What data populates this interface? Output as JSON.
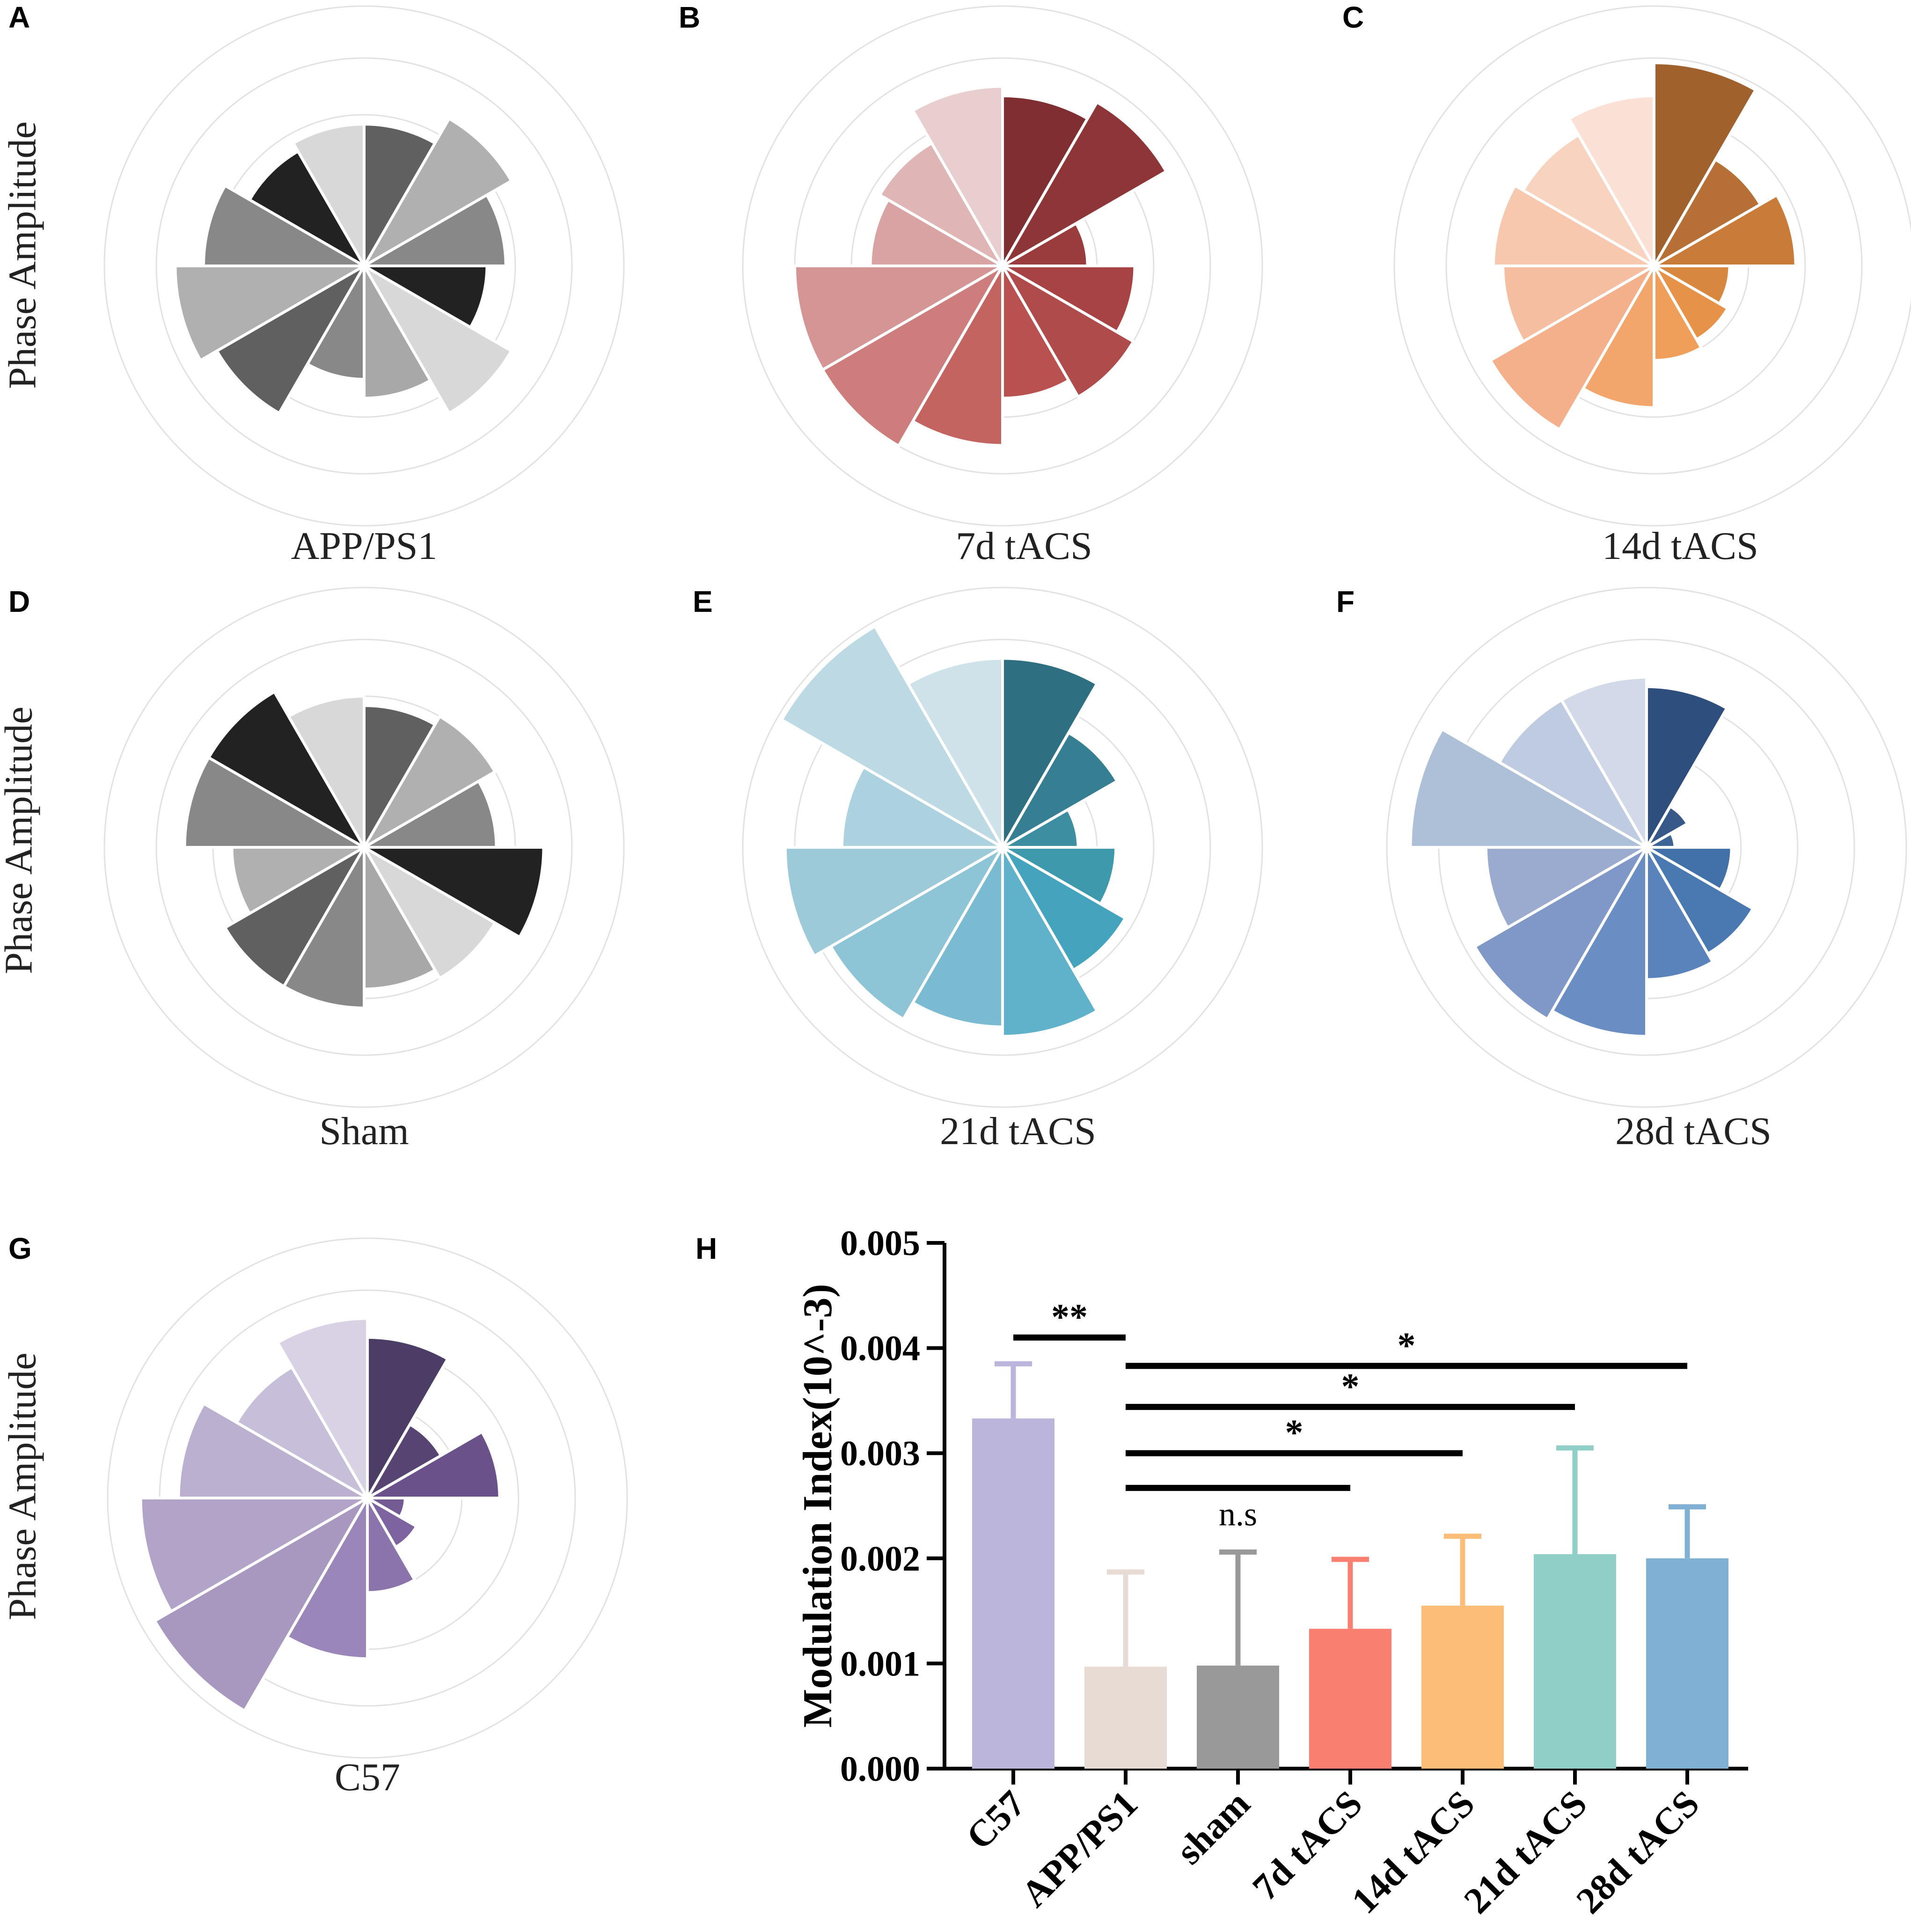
{
  "figure": {
    "panel_letters": [
      "A",
      "B",
      "C",
      "D",
      "E",
      "F",
      "G",
      "H"
    ],
    "rose_ylabel": "Phase Amplitude"
  },
  "chart_data": [
    {
      "type": "polar-bar",
      "panel": "A",
      "title": "APP/PS1",
      "ylabel": "Phase Amplitude",
      "rmax": 0.55,
      "rings": [
        0.2,
        0.32,
        0.44,
        0.55
      ],
      "values": [
        0.3,
        0.36,
        0.3,
        0.26,
        0.36,
        0.28,
        0.24,
        0.36,
        0.4,
        0.34,
        0.28,
        0.3
      ],
      "colors": [
        "#606060",
        "#b0b0b0",
        "#888888",
        "#222222",
        "#d8d8d8",
        "#a8a8a8",
        "#888888",
        "#606060",
        "#b0b0b0",
        "#888888",
        "#222222",
        "#d8d8d8"
      ]
    },
    {
      "type": "polar-bar",
      "panel": "B",
      "title": "7d tACS",
      "ylabel": "",
      "rmax": 0.55,
      "rings": [
        0.2,
        0.32,
        0.44,
        0.55
      ],
      "values": [
        0.36,
        0.4,
        0.18,
        0.28,
        0.32,
        0.28,
        0.38,
        0.44,
        0.44,
        0.28,
        0.3,
        0.38
      ],
      "colors": [
        "#7f2e32",
        "#8e3538",
        "#9a3b3d",
        "#a84345",
        "#b04b4b",
        "#b85150",
        "#c46461",
        "#cd7e7c",
        "#d69595",
        "#d9a3a3",
        "#e0b5b5",
        "#e8cece"
      ]
    },
    {
      "type": "polar-bar",
      "panel": "C",
      "title": "14d tACS",
      "ylabel": "",
      "rmax": 0.55,
      "rings": [
        0.2,
        0.32,
        0.44,
        0.55
      ],
      "values": [
        0.43,
        0.26,
        0.3,
        0.16,
        0.18,
        0.2,
        0.3,
        0.4,
        0.32,
        0.34,
        0.32,
        0.36
      ],
      "colors": [
        "#a0612c",
        "#b66f34",
        "#c97b3a",
        "#d8883e",
        "#e69349",
        "#f09f5b",
        "#f3a66c",
        "#f4b08a",
        "#f6bea1",
        "#f7c8ae",
        "#f8d3c0",
        "#fae0d5"
      ]
    },
    {
      "type": "polar-bar",
      "panel": "D",
      "title": "Sham",
      "ylabel": "Phase Amplitude",
      "rmax": 0.55,
      "rings": [
        0.2,
        0.32,
        0.44,
        0.55
      ],
      "values": [
        0.3,
        0.32,
        0.28,
        0.38,
        0.32,
        0.3,
        0.34,
        0.34,
        0.28,
        0.38,
        0.38,
        0.32
      ],
      "colors": [
        "#606060",
        "#b0b0b0",
        "#888888",
        "#222222",
        "#d8d8d8",
        "#a8a8a8",
        "#888888",
        "#606060",
        "#b0b0b0",
        "#888888",
        "#222222",
        "#d8d8d8"
      ]
    },
    {
      "type": "polar-bar",
      "panel": "E",
      "title": "21d tACS",
      "ylabel": "",
      "rmax": 0.55,
      "rings": [
        0.2,
        0.32,
        0.44,
        0.55
      ],
      "values": [
        0.4,
        0.28,
        0.16,
        0.24,
        0.3,
        0.4,
        0.38,
        0.42,
        0.46,
        0.34,
        0.54,
        0.4
      ],
      "colors": [
        "#2e7082",
        "#367f92",
        "#3c8ea0",
        "#3f99ac",
        "#45a4bd",
        "#5fb2ca",
        "#7abbd1",
        "#8dc4d6",
        "#9dcad9",
        "#acd2df",
        "#bcd9e4",
        "#cfe2ea"
      ]
    },
    {
      "type": "polar-bar",
      "panel": "F",
      "title": "28d tACS",
      "ylabel": "",
      "rmax": 0.55,
      "rings": [
        0.2,
        0.32,
        0.44,
        0.55
      ],
      "values": [
        0.34,
        0.1,
        0.06,
        0.18,
        0.26,
        0.28,
        0.4,
        0.42,
        0.34,
        0.5,
        0.36,
        0.36
      ],
      "colors": [
        "#2e4e7d",
        "#36598a",
        "#3d6497",
        "#4270a8",
        "#4a79b2",
        "#5a83bb",
        "#6a8ec4",
        "#8098c7",
        "#9aabcf",
        "#aebfd8",
        "#bfcbe0",
        "#d2d9e8"
      ]
    },
    {
      "type": "polar-bar",
      "panel": "G",
      "title": "C57",
      "ylabel": "Phase Amplitude",
      "rmax": 0.55,
      "rings": [
        0.2,
        0.32,
        0.44,
        0.55
      ],
      "values": [
        0.34,
        0.18,
        0.28,
        0.08,
        0.12,
        0.2,
        0.34,
        0.52,
        0.48,
        0.4,
        0.32,
        0.38
      ],
      "colors": [
        "#4c3d66",
        "#574473",
        "#6a5189",
        "#745b94",
        "#7d64a1",
        "#8b73ab",
        "#9a86b8",
        "#a898bf",
        "#b2a3c8",
        "#bbb0d0",
        "#c7bed9",
        "#d8d2e4"
      ]
    },
    {
      "type": "bar",
      "panel": "H",
      "title": "",
      "ylabel": "Modulation Index(10^-3)",
      "xlabel": "",
      "categories": [
        "C57",
        "APP/PS1",
        "sham",
        "7d tACS",
        "14d tACS",
        "21d tACS",
        "28d tACS"
      ],
      "values": [
        0.00333,
        0.00097,
        0.00098,
        0.00133,
        0.00155,
        0.00204,
        0.002
      ],
      "errors": [
        0.00052,
        0.0009,
        0.00108,
        0.00066,
        0.00066,
        0.00101,
        0.00049
      ],
      "colors": [
        "#bbb5db",
        "#e8dbd3",
        "#999999",
        "#f98070",
        "#fcbd79",
        "#90cfc8",
        "#80b0d3"
      ],
      "ylim": [
        0,
        0.005
      ],
      "yticks": [
        "0.000",
        "0.001",
        "0.002",
        "0.003",
        "0.004",
        "0.005"
      ],
      "significance": [
        {
          "from": 0,
          "to": 1,
          "label": "**",
          "y": 0.0041
        },
        {
          "from": 1,
          "to": 6,
          "label": "*",
          "y": 0.00383
        },
        {
          "from": 1,
          "to": 5,
          "label": "*",
          "y": 0.00344
        },
        {
          "from": 1,
          "to": 4,
          "label": "*",
          "y": 0.003
        },
        {
          "from": 1,
          "to": 3,
          "label": "n.s",
          "y": 0.00267
        }
      ]
    }
  ]
}
